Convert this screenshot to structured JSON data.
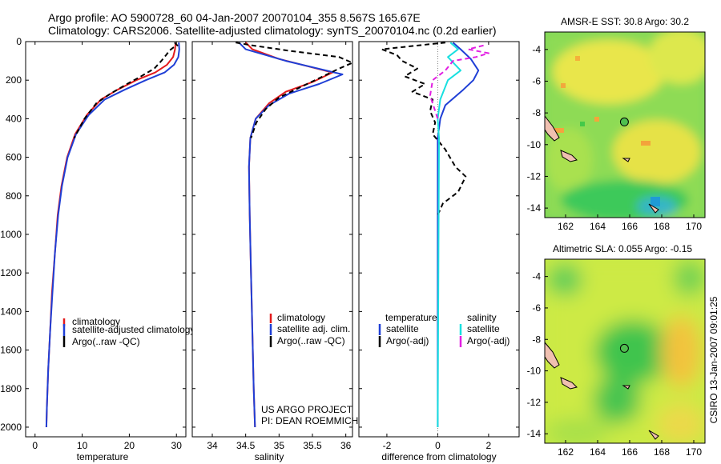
{
  "header": {
    "title_line1": "Argo profile: AO 5900728_60 04-Jan-2007 20070104_355 8.567S 165.67E",
    "title_line2": "Climatology: CARS2006. Satellite-adjusted climatology: synTS_20070104.nc (0.2d earlier)"
  },
  "credits": {
    "project": "US ARGO PROJECT",
    "pi": "PI: DEAN ROEMMICH",
    "stamp": "CSIRO 13-Jan-2007 09:01:25"
  },
  "colors": {
    "climatology": "#e31a1c",
    "satellite": "#1f3fd6",
    "argo": "#000000",
    "sal_satellite": "#19e0e0",
    "sal_argo": "#e21ee2",
    "land": "#f0c0b0"
  },
  "chart_data": [
    {
      "type": "line",
      "id": "temperature",
      "xlabel": "temperature",
      "ylabel": "",
      "xlim": [
        -2,
        32
      ],
      "ylim": [
        2050,
        0
      ],
      "y_reversed": true,
      "xticks": [
        0,
        10,
        20,
        30
      ],
      "yticks": [
        0,
        200,
        400,
        600,
        800,
        1000,
        1200,
        1400,
        1600,
        1800,
        2000
      ],
      "legend": {
        "placement": "lower-center",
        "entries": [
          "climatology",
          "satellite-adjusted climatology",
          "Argo(..raw -QC)"
        ]
      },
      "series": [
        {
          "name": "climatology",
          "style": "solid",
          "points": [
            [
              29.8,
              5
            ],
            [
              29.7,
              40
            ],
            [
              29.3,
              80
            ],
            [
              28.0,
              120
            ],
            [
              25.5,
              160
            ],
            [
              21.5,
              200
            ],
            [
              17.5,
              250
            ],
            [
              14.0,
              300
            ],
            [
              11.0,
              380
            ],
            [
              8.5,
              480
            ],
            [
              6.8,
              600
            ],
            [
              5.6,
              750
            ],
            [
              4.8,
              900
            ],
            [
              4.2,
              1100
            ],
            [
              3.6,
              1300
            ],
            [
              3.2,
              1500
            ],
            [
              2.8,
              1700
            ],
            [
              2.5,
              1900
            ],
            [
              2.4,
              2000
            ]
          ]
        },
        {
          "name": "satellite-adjusted climatology",
          "style": "solid",
          "points": [
            [
              30.5,
              5
            ],
            [
              30.6,
              40
            ],
            [
              30.4,
              80
            ],
            [
              29.5,
              120
            ],
            [
              27.5,
              160
            ],
            [
              23.5,
              200
            ],
            [
              19.0,
              250
            ],
            [
              14.8,
              300
            ],
            [
              11.4,
              380
            ],
            [
              8.7,
              480
            ],
            [
              6.9,
              600
            ],
            [
              5.7,
              750
            ],
            [
              4.9,
              900
            ],
            [
              4.2,
              1100
            ],
            [
              3.7,
              1300
            ],
            [
              3.2,
              1500
            ],
            [
              2.8,
              1700
            ],
            [
              2.5,
              1900
            ],
            [
              2.4,
              2000
            ]
          ]
        },
        {
          "name": "Argo(..raw -QC)",
          "style": "dashed",
          "points": [
            [
              29.6,
              5
            ],
            [
              30.2,
              20
            ],
            [
              29.4,
              30
            ],
            [
              28.6,
              45
            ],
            [
              27.8,
              70
            ],
            [
              26.8,
              100
            ],
            [
              25.3,
              140
            ],
            [
              22.5,
              180
            ],
            [
              19.5,
              220
            ],
            [
              16.0,
              270
            ],
            [
              13.0,
              320
            ],
            [
              10.5,
              400
            ],
            [
              8.3,
              500
            ]
          ]
        }
      ]
    },
    {
      "type": "line",
      "id": "salinity",
      "xlabel": "salinity",
      "ylabel": "",
      "xlim": [
        33.7,
        36.1
      ],
      "ylim": [
        2050,
        0
      ],
      "y_reversed": true,
      "xticks": [
        34,
        34.5,
        35,
        35.5,
        36
      ],
      "legend": {
        "placement": "lower-center",
        "entries": [
          "climatology",
          "satellite adj. clim.",
          "Argo(..raw -QC)"
        ]
      },
      "series": [
        {
          "name": "climatology",
          "style": "solid",
          "points": [
            [
              34.5,
              5
            ],
            [
              34.6,
              40
            ],
            [
              35.0,
              90
            ],
            [
              35.8,
              160
            ],
            [
              35.5,
              210
            ],
            [
              35.1,
              260
            ],
            [
              34.85,
              320
            ],
            [
              34.65,
              400
            ],
            [
              34.57,
              500
            ],
            [
              34.55,
              650
            ],
            [
              34.56,
              900
            ],
            [
              34.58,
              1200
            ],
            [
              34.6,
              1500
            ],
            [
              34.62,
              1800
            ],
            [
              34.64,
              2000
            ]
          ]
        },
        {
          "name": "satellite adj. clim.",
          "style": "solid",
          "points": [
            [
              34.4,
              5
            ],
            [
              34.5,
              40
            ],
            [
              35.1,
              100
            ],
            [
              35.95,
              170
            ],
            [
              35.6,
              220
            ],
            [
              35.15,
              270
            ],
            [
              34.85,
              330
            ],
            [
              34.65,
              400
            ],
            [
              34.57,
              500
            ],
            [
              34.55,
              650
            ],
            [
              34.56,
              900
            ],
            [
              34.58,
              1200
            ],
            [
              34.6,
              1500
            ],
            [
              34.62,
              1800
            ],
            [
              34.64,
              2000
            ]
          ]
        },
        {
          "name": "Argo(..raw -QC)",
          "style": "dashed",
          "points": [
            [
              34.35,
              5
            ],
            [
              34.6,
              20
            ],
            [
              35.2,
              50
            ],
            [
              35.9,
              80
            ],
            [
              36.1,
              110
            ],
            [
              35.9,
              140
            ],
            [
              35.6,
              190
            ],
            [
              35.3,
              240
            ],
            [
              35.0,
              290
            ],
            [
              34.8,
              350
            ],
            [
              34.66,
              420
            ],
            [
              34.58,
              500
            ]
          ]
        }
      ]
    },
    {
      "type": "line",
      "id": "difference",
      "xlabel": "difference from climatology",
      "ylabel": "",
      "xlim": [
        -3.1,
        3.2
      ],
      "ylim": [
        2050,
        0
      ],
      "y_reversed": true,
      "xticks": [
        -2,
        0,
        2
      ],
      "legend": {
        "placement": "lower-center",
        "headers": [
          "temperature",
          "salinity"
        ],
        "entries": [
          "satellite",
          "Argo(-adj)",
          "satellite",
          "Argo(-adj)"
        ]
      },
      "series": [
        {
          "name": "temperature satellite",
          "style": "solid",
          "points": [
            [
              0.6,
              5
            ],
            [
              0.9,
              40
            ],
            [
              1.3,
              90
            ],
            [
              1.6,
              150
            ],
            [
              1.4,
              200
            ],
            [
              1.0,
              250
            ],
            [
              0.3,
              330
            ],
            [
              0.1,
              400
            ],
            [
              0.0,
              500
            ],
            [
              0.0,
              2000
            ]
          ]
        },
        {
          "name": "temperature Argo(-adj)",
          "style": "dashed",
          "points": [
            [
              0.3,
              5
            ],
            [
              -2.2,
              40
            ],
            [
              -1.6,
              70
            ],
            [
              -1.4,
              100
            ],
            [
              -0.8,
              140
            ],
            [
              -1.3,
              180
            ],
            [
              -0.5,
              220
            ],
            [
              -1.0,
              260
            ],
            [
              -0.2,
              300
            ],
            [
              -0.3,
              360
            ],
            [
              -0.1,
              420
            ],
            [
              -0.2,
              480
            ],
            [
              0.3,
              560
            ],
            [
              0.7,
              650
            ],
            [
              1.1,
              700
            ],
            [
              0.8,
              780
            ],
            [
              0.2,
              840
            ],
            [
              0.0,
              900
            ]
          ]
        },
        {
          "name": "salinity satellite",
          "style": "solid",
          "points": [
            [
              0.5,
              5
            ],
            [
              0.8,
              40
            ],
            [
              0.4,
              80
            ],
            [
              0.9,
              150
            ],
            [
              0.4,
              200
            ],
            [
              0.1,
              300
            ],
            [
              0.0,
              400
            ],
            [
              0.05,
              500
            ],
            [
              0.0,
              2000
            ]
          ]
        },
        {
          "name": "salinity Argo(-adj)",
          "style": "dashed",
          "points": [
            [
              1.8,
              20
            ],
            [
              1.2,
              40
            ],
            [
              2.0,
              60
            ],
            [
              1.5,
              80
            ],
            [
              0.6,
              100
            ],
            [
              0.3,
              150
            ],
            [
              -0.2,
              200
            ],
            [
              -0.3,
              280
            ],
            [
              0.0,
              400
            ]
          ]
        }
      ]
    },
    {
      "type": "heatmap",
      "id": "amsr-e-sst",
      "title": "AMSR-E SST: 30.8  Argo: 30.2",
      "xlim": [
        160.7,
        170.7
      ],
      "ylim": [
        -14.6,
        -2.9
      ],
      "xticks": [
        162,
        164,
        166,
        168,
        170
      ],
      "yticks": [
        -4,
        -6,
        -8,
        -10,
        -12,
        -14
      ],
      "argo_position": [
        165.67,
        -8.567
      ]
    },
    {
      "type": "heatmap",
      "id": "altimetric-sla",
      "title": "Altimetric SLA: 0.055  Argo: -0.15",
      "xlim": [
        160.7,
        170.7
      ],
      "ylim": [
        -14.6,
        -2.9
      ],
      "xticks": [
        162,
        164,
        166,
        168,
        170
      ],
      "yticks": [
        -4,
        -6,
        -8,
        -10,
        -12,
        -14
      ],
      "argo_position": [
        165.67,
        -8.567
      ]
    }
  ]
}
